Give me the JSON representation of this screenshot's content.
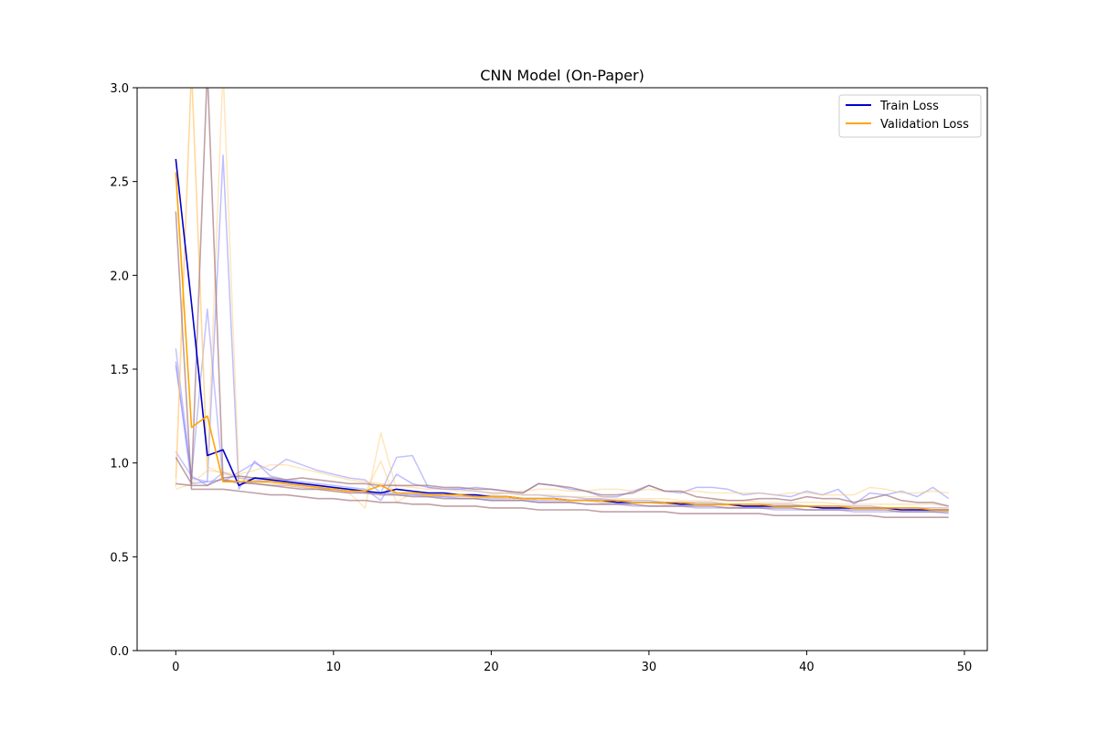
{
  "chart_data": {
    "type": "line",
    "title": "CNN Model (On-Paper)",
    "xlabel": "",
    "ylabel": "",
    "xlim": [
      -2.45,
      51.45
    ],
    "ylim": [
      0,
      3
    ],
    "xticks": [
      0,
      10,
      20,
      30,
      40,
      50
    ],
    "yticks": [
      0.0,
      0.5,
      1.0,
      1.5,
      2.0,
      2.5,
      3.0
    ],
    "grid": false,
    "legend_position": "top-right",
    "colors": {
      "train": "#0000cc",
      "validation": "#ffa500",
      "train_faint": "#9999ff",
      "validation_faint": "#ffd28a",
      "overlap": "#a07880"
    },
    "series": [
      {
        "name": "Train Loss",
        "color": "#0000cc",
        "opacity": 1,
        "width": 1.6,
        "values": [
          2.62,
          1.85,
          1.04,
          1.07,
          0.88,
          0.92,
          0.91,
          0.9,
          0.89,
          0.88,
          0.87,
          0.86,
          0.85,
          0.84,
          0.86,
          0.85,
          0.84,
          0.84,
          0.83,
          0.83,
          0.82,
          0.82,
          0.81,
          0.81,
          0.81,
          0.8,
          0.8,
          0.8,
          0.79,
          0.79,
          0.79,
          0.79,
          0.78,
          0.78,
          0.78,
          0.78,
          0.77,
          0.77,
          0.77,
          0.77,
          0.77,
          0.76,
          0.76,
          0.76,
          0.76,
          0.76,
          0.75,
          0.75,
          0.75,
          0.75
        ]
      },
      {
        "name": "Validation Loss",
        "color": "#ffa500",
        "opacity": 1,
        "width": 1.6,
        "values": [
          2.55,
          1.19,
          1.25,
          0.9,
          0.9,
          0.9,
          0.9,
          0.89,
          0.88,
          0.87,
          0.86,
          0.85,
          0.85,
          0.88,
          0.84,
          0.84,
          0.83,
          0.83,
          0.83,
          0.82,
          0.82,
          0.82,
          0.81,
          0.81,
          0.81,
          0.8,
          0.8,
          0.8,
          0.8,
          0.79,
          0.79,
          0.79,
          0.79,
          0.78,
          0.78,
          0.78,
          0.78,
          0.78,
          0.77,
          0.77,
          0.77,
          0.77,
          0.77,
          0.76,
          0.76,
          0.76,
          0.76,
          0.76,
          0.75,
          0.75
        ]
      },
      {
        "color": "#8888ff",
        "opacity": 0.55,
        "width": 1.5,
        "values": [
          1.54,
          0.89,
          0.9,
          2.64,
          0.86,
          1.01,
          0.93,
          0.91,
          0.9,
          0.89,
          0.88,
          0.87,
          0.86,
          0.8,
          0.94,
          0.89,
          0.87,
          0.86,
          0.86,
          0.87,
          0.86,
          0.85,
          0.84,
          0.89,
          0.88,
          0.86,
          0.85,
          0.82,
          0.82,
          0.85,
          0.88,
          0.85,
          0.84,
          0.87,
          0.87,
          0.86,
          0.83,
          0.84,
          0.83,
          0.82,
          0.85,
          0.83,
          0.86,
          0.78,
          0.84,
          0.83,
          0.85,
          0.82,
          0.87,
          0.81
        ]
      },
      {
        "color": "#8888ff",
        "opacity": 0.5,
        "width": 1.5,
        "values": [
          1.61,
          0.93,
          1.82,
          0.9,
          0.95,
          1.0,
          0.96,
          1.02,
          0.99,
          0.96,
          0.94,
          0.92,
          0.91,
          0.84,
          1.03,
          1.04,
          0.87,
          0.86,
          0.86,
          0.85,
          0.84,
          0.84,
          0.83,
          0.83,
          0.82,
          0.82,
          0.81,
          0.81,
          0.8,
          0.8,
          0.8,
          0.79,
          0.79,
          0.79,
          0.79,
          0.78,
          0.78,
          0.78,
          0.78,
          0.78,
          0.77,
          0.77,
          0.77,
          0.77,
          0.77,
          0.76,
          0.76,
          0.76,
          0.76,
          0.76
        ]
      },
      {
        "color": "#8888ff",
        "opacity": 0.5,
        "width": 1.5,
        "values": [
          1.06,
          0.93,
          0.88,
          0.95,
          0.92,
          0.91,
          0.9,
          0.89,
          0.88,
          0.87,
          0.86,
          0.85,
          0.84,
          0.84,
          0.83,
          0.83,
          0.82,
          0.82,
          0.81,
          0.81,
          0.8,
          0.8,
          0.8,
          0.79,
          0.79,
          0.79,
          0.78,
          0.78,
          0.78,
          0.77,
          0.77,
          0.77,
          0.77,
          0.76,
          0.76,
          0.76,
          0.76,
          0.76,
          0.75,
          0.75,
          0.75,
          0.75,
          0.75,
          0.74,
          0.74,
          0.74,
          0.74,
          0.74,
          0.74,
          0.73
        ]
      },
      {
        "color": "#8888ff",
        "opacity": 0.5,
        "width": 1.5,
        "values": [
          1.52,
          0.92,
          0.9,
          0.91,
          0.89,
          0.89,
          0.88,
          0.88,
          0.87,
          0.86,
          0.86,
          0.85,
          0.85,
          0.84,
          0.84,
          0.83,
          0.83,
          0.82,
          0.82,
          0.82,
          0.81,
          0.81,
          0.81,
          0.8,
          0.8,
          0.8,
          0.8,
          0.79,
          0.79,
          0.79,
          0.79,
          0.78,
          0.78,
          0.78,
          0.78,
          0.78,
          0.77,
          0.77,
          0.77,
          0.77,
          0.77,
          0.76,
          0.76,
          0.76,
          0.76,
          0.76,
          0.76,
          0.75,
          0.75,
          0.75
        ]
      },
      {
        "color": "#ffc86e",
        "opacity": 0.45,
        "width": 1.5,
        "values": [
          0.92,
          3.1,
          0.95,
          3.1,
          0.92,
          0.9,
          0.89,
          0.88,
          0.87,
          0.86,
          0.85,
          0.84,
          0.76,
          1.16,
          0.86,
          0.85,
          0.84,
          0.84,
          0.83,
          0.83,
          0.83,
          0.84,
          0.85,
          0.86,
          0.86,
          0.85,
          0.85,
          0.86,
          0.86,
          0.85,
          0.86,
          0.85,
          0.85,
          0.85,
          0.84,
          0.84,
          0.84,
          0.84,
          0.83,
          0.84,
          0.84,
          0.83,
          0.83,
          0.83,
          0.87,
          0.86,
          0.84,
          0.84,
          0.85,
          0.84
        ]
      },
      {
        "color": "#ffc86e",
        "opacity": 0.45,
        "width": 1.5,
        "values": [
          0.87,
          3.1,
          0.98,
          0.94,
          0.93,
          0.92,
          0.91,
          0.9,
          0.89,
          0.88,
          0.87,
          0.86,
          0.84,
          1.01,
          0.79,
          0.84,
          0.83,
          0.83,
          0.82,
          0.82,
          0.82,
          0.81,
          0.81,
          0.81,
          0.8,
          0.8,
          0.8,
          0.79,
          0.79,
          0.79,
          0.79,
          0.78,
          0.78,
          0.78,
          0.78,
          0.77,
          0.77,
          0.77,
          0.77,
          0.77,
          0.77,
          0.76,
          0.76,
          0.76,
          0.76,
          0.76,
          0.76,
          0.76,
          0.75,
          0.75
        ]
      },
      {
        "color": "#ffc86e",
        "opacity": 0.45,
        "width": 1.5,
        "values": [
          0.86,
          0.89,
          0.96,
          0.95,
          0.94,
          0.96,
          0.99,
          0.99,
          0.97,
          0.95,
          0.93,
          0.91,
          0.9,
          0.89,
          0.88,
          0.87,
          0.86,
          0.86,
          0.85,
          0.85,
          0.84,
          0.84,
          0.83,
          0.83,
          0.83,
          0.82,
          0.82,
          0.82,
          0.81,
          0.81,
          0.81,
          0.81,
          0.8,
          0.8,
          0.8,
          0.8,
          0.8,
          0.79,
          0.79,
          0.79,
          0.79,
          0.79,
          0.78,
          0.78,
          0.78,
          0.78,
          0.78,
          0.78,
          0.78,
          0.77
        ]
      },
      {
        "color": "#9e6e78",
        "opacity": 0.65,
        "width": 1.6,
        "values": [
          2.34,
          0.86,
          0.86,
          0.86,
          0.85,
          0.84,
          0.83,
          0.83,
          0.82,
          0.81,
          0.81,
          0.8,
          0.8,
          0.79,
          0.79,
          0.78,
          0.78,
          0.77,
          0.77,
          0.77,
          0.76,
          0.76,
          0.76,
          0.75,
          0.75,
          0.75,
          0.75,
          0.74,
          0.74,
          0.74,
          0.74,
          0.74,
          0.73,
          0.73,
          0.73,
          0.73,
          0.73,
          0.73,
          0.72,
          0.72,
          0.72,
          0.72,
          0.72,
          0.72,
          0.72,
          0.71,
          0.71,
          0.71,
          0.71,
          0.71
        ]
      },
      {
        "color": "#9e6e78",
        "opacity": 0.65,
        "width": 1.6,
        "values": [
          1.03,
          0.89,
          3.1,
          0.91,
          0.9,
          0.89,
          0.88,
          0.87,
          0.86,
          0.86,
          0.85,
          0.84,
          0.84,
          0.83,
          0.83,
          0.82,
          0.82,
          0.81,
          0.81,
          0.81,
          0.8,
          0.8,
          0.8,
          0.79,
          0.79,
          0.79,
          0.78,
          0.78,
          0.78,
          0.78,
          0.77,
          0.77,
          0.77,
          0.77,
          0.77,
          0.76,
          0.76,
          0.76,
          0.76,
          0.76,
          0.75,
          0.75,
          0.75,
          0.75,
          0.75,
          0.75,
          0.74,
          0.74,
          0.74,
          0.74
        ]
      },
      {
        "color": "#9e6e78",
        "opacity": 0.65,
        "width": 1.6,
        "values": [
          0.89,
          0.88,
          0.88,
          0.92,
          0.93,
          0.92,
          0.92,
          0.91,
          0.92,
          0.91,
          0.9,
          0.89,
          0.89,
          0.88,
          0.88,
          0.88,
          0.88,
          0.87,
          0.87,
          0.86,
          0.86,
          0.85,
          0.84,
          0.89,
          0.88,
          0.87,
          0.85,
          0.83,
          0.83,
          0.84,
          0.88,
          0.85,
          0.85,
          0.82,
          0.81,
          0.8,
          0.8,
          0.81,
          0.81,
          0.8,
          0.82,
          0.81,
          0.81,
          0.79,
          0.81,
          0.83,
          0.8,
          0.79,
          0.79,
          0.77
        ]
      }
    ],
    "legend": [
      {
        "label": "Train Loss",
        "color": "#0000cc"
      },
      {
        "label": "Validation Loss",
        "color": "#ffa500"
      }
    ]
  }
}
